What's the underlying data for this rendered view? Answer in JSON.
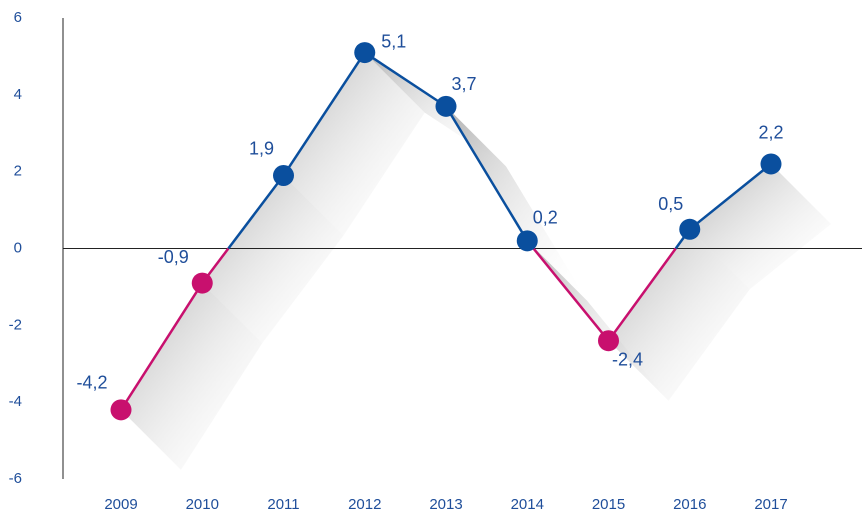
{
  "chart_data": {
    "type": "line",
    "categories": [
      "2009",
      "2010",
      "2011",
      "2012",
      "2013",
      "2014",
      "2015",
      "2016",
      "2017"
    ],
    "values": [
      -4.2,
      -0.9,
      1.9,
      5.1,
      3.7,
      0.2,
      -2.4,
      0.5,
      2.2
    ],
    "value_labels": [
      "-4,2",
      "-0,9",
      "1,9",
      "5,1",
      "3,7",
      "0,2",
      "-2,4",
      "0,5",
      "2,2"
    ],
    "positive_color": "#0a4f9e",
    "negative_color": "#c8106e",
    "ylim": [
      -6,
      6
    ],
    "yticks": [
      -6,
      -4,
      -2,
      0,
      2,
      4,
      6
    ],
    "grid": false
  }
}
